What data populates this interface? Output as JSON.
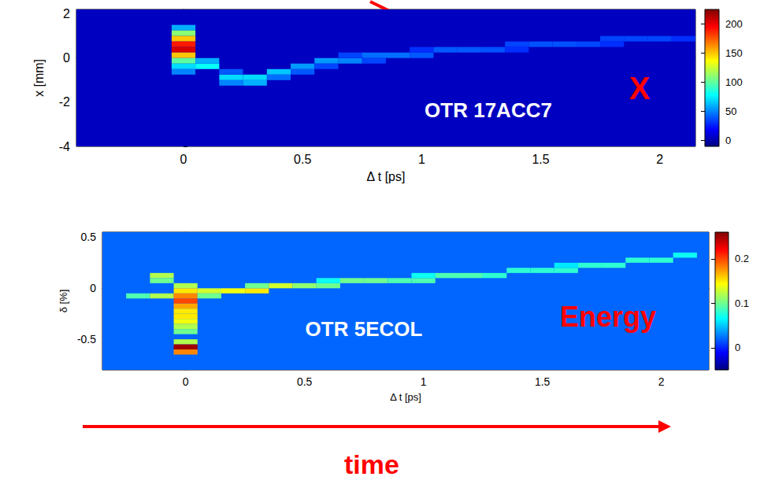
{
  "chart_data": [
    {
      "type": "heatmap",
      "xlabel": "Δ t [ps]",
      "ylabel": "x [mm]",
      "xlim": [
        -0.45,
        2.15
      ],
      "xticks": [
        0,
        0.5,
        1,
        1.5,
        2
      ],
      "ylim": [
        -4,
        2.2
      ],
      "yticks": [
        -4,
        -2,
        0,
        2
      ],
      "grid": false,
      "cell_width": 0.1,
      "cell_height": 0.25,
      "background": 5,
      "cells": [
        [
          0,
          1.375,
          60
        ],
        [
          0,
          1.125,
          110
        ],
        [
          0,
          0.875,
          150
        ],
        [
          0,
          0.625,
          190
        ],
        [
          0,
          0.375,
          205
        ],
        [
          0,
          0.125,
          150
        ],
        [
          0,
          -0.125,
          100
        ],
        [
          0,
          -0.375,
          70
        ],
        [
          0,
          -0.625,
          50
        ],
        [
          0.1,
          -0.375,
          80
        ],
        [
          0.1,
          -0.125,
          60
        ],
        [
          0.2,
          -0.875,
          70
        ],
        [
          0.2,
          -1.125,
          50
        ],
        [
          0.2,
          -0.625,
          40
        ],
        [
          0.3,
          -0.875,
          70
        ],
        [
          0.3,
          -1.125,
          60
        ],
        [
          0.4,
          -0.625,
          65
        ],
        [
          0.4,
          -0.875,
          45
        ],
        [
          0.5,
          -0.375,
          55
        ],
        [
          0.5,
          -0.625,
          40
        ],
        [
          0.6,
          -0.125,
          55
        ],
        [
          0.6,
          -0.375,
          35
        ],
        [
          0.7,
          -0.125,
          50
        ],
        [
          0.7,
          0.125,
          35
        ],
        [
          0.8,
          0.125,
          45
        ],
        [
          0.8,
          -0.125,
          35
        ],
        [
          0.9,
          0.125,
          45
        ],
        [
          1.0,
          0.125,
          40
        ],
        [
          1.0,
          0.375,
          30
        ],
        [
          1.1,
          0.375,
          40
        ],
        [
          1.2,
          0.375,
          40
        ],
        [
          1.3,
          0.375,
          38
        ],
        [
          1.4,
          0.625,
          35
        ],
        [
          1.4,
          0.375,
          30
        ],
        [
          1.5,
          0.625,
          38
        ],
        [
          1.6,
          0.625,
          38
        ],
        [
          1.7,
          0.625,
          36
        ],
        [
          1.8,
          0.875,
          35
        ],
        [
          1.8,
          0.625,
          30
        ],
        [
          1.9,
          0.875,
          35
        ],
        [
          2.0,
          0.875,
          35
        ],
        [
          2.1,
          0.875,
          30
        ]
      ],
      "colorbar": {
        "range": [
          -10,
          225
        ],
        "ticks": [
          0,
          50,
          100,
          150,
          200
        ]
      },
      "annotations": [
        {
          "text": "OTR 17ACC7",
          "color": "#ffffff"
        },
        {
          "text": "X",
          "color": "#ff0000"
        }
      ]
    },
    {
      "type": "heatmap",
      "xlabel": "Δ t [ps]",
      "ylabel": "δ [%]",
      "xlim": [
        -0.35,
        2.2
      ],
      "xticks": [
        0,
        0.5,
        1,
        1.5,
        2
      ],
      "ylim": [
        -0.8,
        0.55
      ],
      "yticks": [
        -0.5,
        0,
        0.5
      ],
      "grid": false,
      "cell_width": 0.1,
      "cell_height": 0.05,
      "background": 0.02,
      "cells": [
        [
          -0.2,
          -0.075,
          0.09
        ],
        [
          -0.1,
          -0.075,
          0.12
        ],
        [
          -0.1,
          0.125,
          0.12
        ],
        [
          -0.1,
          0.075,
          0.1
        ],
        [
          0,
          0.025,
          0.12
        ],
        [
          0,
          -0.025,
          0.15
        ],
        [
          0,
          -0.075,
          0.18
        ],
        [
          0,
          -0.125,
          0.2
        ],
        [
          0,
          -0.175,
          0.17
        ],
        [
          0,
          -0.225,
          0.15
        ],
        [
          0,
          -0.275,
          0.15
        ],
        [
          0,
          -0.325,
          0.14
        ],
        [
          0,
          -0.375,
          0.12
        ],
        [
          0,
          -0.425,
          0.1
        ],
        [
          0,
          -0.525,
          0.12
        ],
        [
          0,
          -0.575,
          0.25
        ],
        [
          0,
          -0.625,
          0.18
        ],
        [
          0.1,
          -0.025,
          0.13
        ],
        [
          0.1,
          -0.075,
          0.1
        ],
        [
          0.2,
          -0.025,
          0.14
        ],
        [
          0.3,
          -0.025,
          0.15
        ],
        [
          0.3,
          0.025,
          0.1
        ],
        [
          0.4,
          0.025,
          0.13
        ],
        [
          0.5,
          0.025,
          0.11
        ],
        [
          0.6,
          0.025,
          0.1
        ],
        [
          0.6,
          0.075,
          0.07
        ],
        [
          0.7,
          0.075,
          0.1
        ],
        [
          0.8,
          0.075,
          0.1
        ],
        [
          0.9,
          0.075,
          0.09
        ],
        [
          1.0,
          0.075,
          0.09
        ],
        [
          1.0,
          0.125,
          0.07
        ],
        [
          1.1,
          0.125,
          0.09
        ],
        [
          1.2,
          0.125,
          0.09
        ],
        [
          1.3,
          0.125,
          0.08
        ],
        [
          1.4,
          0.175,
          0.08
        ],
        [
          1.5,
          0.175,
          0.08
        ],
        [
          1.6,
          0.175,
          0.08
        ],
        [
          1.6,
          0.225,
          0.06
        ],
        [
          1.7,
          0.225,
          0.08
        ],
        [
          1.8,
          0.225,
          0.08
        ],
        [
          1.9,
          0.275,
          0.08
        ],
        [
          2.0,
          0.275,
          0.08
        ],
        [
          2.1,
          0.325,
          0.07
        ]
      ],
      "colorbar": {
        "range": [
          -0.05,
          0.26
        ],
        "ticks": [
          0,
          0.1,
          0.2
        ]
      },
      "annotations": [
        {
          "text": "OTR 5ECOL",
          "color": "#ffffff"
        },
        {
          "text": "Energy",
          "color": "#ff0000"
        }
      ]
    }
  ],
  "annotations": [
    {
      "text": "time",
      "color": "#ff0000"
    }
  ]
}
